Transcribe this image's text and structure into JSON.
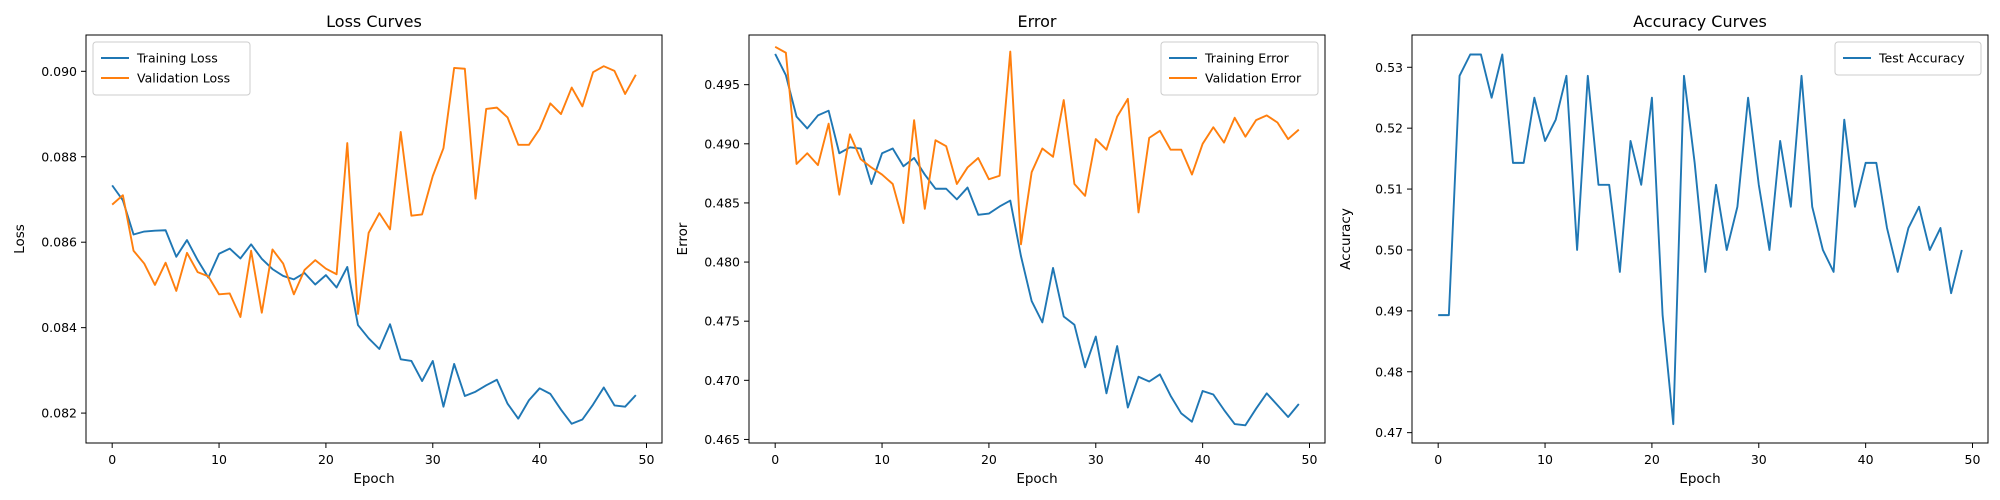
{
  "colors": {
    "blue": "#1f77b4",
    "orange": "#ff7f0e"
  },
  "chart_data": [
    {
      "type": "line",
      "title": "Loss Curves",
      "xlabel": "Epoch",
      "ylabel": "Loss",
      "xlim": [
        -2.45,
        51.45
      ],
      "ylim": [
        0.0813,
        0.09085
      ],
      "xticks": [
        0,
        10,
        20,
        30,
        40,
        50
      ],
      "yticks": [
        0.082,
        0.084,
        0.086,
        0.088,
        0.09
      ],
      "ytick_labels": [
        "0.082",
        "0.084",
        "0.086",
        "0.088",
        "0.090"
      ],
      "legend_loc": "upper left",
      "x": [
        0,
        1,
        2,
        3,
        4,
        5,
        6,
        7,
        8,
        9,
        10,
        11,
        12,
        13,
        14,
        15,
        16,
        17,
        18,
        19,
        20,
        21,
        22,
        23,
        24,
        25,
        26,
        27,
        28,
        29,
        30,
        31,
        32,
        33,
        34,
        35,
        36,
        37,
        38,
        39,
        40,
        41,
        42,
        43,
        44,
        45,
        46,
        47,
        48,
        49
      ],
      "series": [
        {
          "name": "Training Loss",
          "color": "#1f77b4",
          "values": [
            0.08733,
            0.08698,
            0.08618,
            0.08625,
            0.08627,
            0.08628,
            0.08566,
            0.08605,
            0.08558,
            0.08517,
            0.08573,
            0.08585,
            0.08562,
            0.08595,
            0.08561,
            0.08537,
            0.08521,
            0.08513,
            0.08528,
            0.08501,
            0.08523,
            0.08494,
            0.08542,
            0.08406,
            0.08375,
            0.0835,
            0.08408,
            0.08326,
            0.08322,
            0.08275,
            0.08322,
            0.08215,
            0.08315,
            0.0824,
            0.0825,
            0.08265,
            0.08278,
            0.08222,
            0.08187,
            0.0823,
            0.08258,
            0.08245,
            0.08208,
            0.08175,
            0.08185,
            0.0822,
            0.0826,
            0.08218,
            0.08215,
            0.08242
          ]
        },
        {
          "name": "Validation Loss",
          "color": "#ff7f0e",
          "values": [
            0.08688,
            0.0871,
            0.0858,
            0.0855,
            0.085,
            0.08552,
            0.08486,
            0.08575,
            0.0853,
            0.0852,
            0.08478,
            0.0848,
            0.08425,
            0.0858,
            0.08435,
            0.08583,
            0.0855,
            0.08478,
            0.08535,
            0.08558,
            0.08538,
            0.08525,
            0.08832,
            0.08432,
            0.08622,
            0.08668,
            0.0863,
            0.08858,
            0.08662,
            0.08665,
            0.08755,
            0.0882,
            0.09008,
            0.09006,
            0.08702,
            0.08912,
            0.08915,
            0.08892,
            0.08828,
            0.08828,
            0.08865,
            0.08925,
            0.089,
            0.08962,
            0.08918,
            0.08998,
            0.09012,
            0.09001,
            0.08947,
            0.08992
          ]
        }
      ]
    },
    {
      "type": "line",
      "title": "Error",
      "xlabel": "Epoch",
      "ylabel": "Error",
      "xlim": [
        -2.45,
        51.45
      ],
      "ylim": [
        0.4647,
        0.4992
      ],
      "xticks": [
        0,
        10,
        20,
        30,
        40,
        50
      ],
      "yticks": [
        0.465,
        0.47,
        0.475,
        0.48,
        0.485,
        0.49,
        0.495
      ],
      "ytick_labels": [
        "0.465",
        "0.470",
        "0.475",
        "0.480",
        "0.485",
        "0.490",
        "0.495"
      ],
      "legend_loc": "upper right",
      "x": [
        0,
        1,
        2,
        3,
        4,
        5,
        6,
        7,
        8,
        9,
        10,
        11,
        12,
        13,
        14,
        15,
        16,
        17,
        18,
        19,
        20,
        21,
        22,
        23,
        24,
        25,
        26,
        27,
        28,
        29,
        30,
        31,
        32,
        33,
        34,
        35,
        36,
        37,
        38,
        39,
        40,
        41,
        42,
        43,
        44,
        45,
        46,
        47,
        48,
        49
      ],
      "series": [
        {
          "name": "Training Error",
          "color": "#1f77b4",
          "values": [
            0.4976,
            0.4958,
            0.4923,
            0.4913,
            0.4924,
            0.4928,
            0.4892,
            0.4897,
            0.4896,
            0.4866,
            0.4892,
            0.4896,
            0.4881,
            0.4888,
            0.4874,
            0.4862,
            0.4862,
            0.4853,
            0.4863,
            0.484,
            0.4841,
            0.4847,
            0.4852,
            0.4805,
            0.4767,
            0.4749,
            0.4795,
            0.4754,
            0.4747,
            0.4711,
            0.4737,
            0.4689,
            0.4729,
            0.4677,
            0.4703,
            0.4699,
            0.4705,
            0.4687,
            0.4672,
            0.4665,
            0.4691,
            0.4688,
            0.4675,
            0.4663,
            0.4662,
            0.4676,
            0.4689,
            0.4679,
            0.4669,
            0.468
          ]
        },
        {
          "name": "Validation Error",
          "color": "#ff7f0e",
          "values": [
            0.4982,
            0.4977,
            0.4883,
            0.4892,
            0.4882,
            0.4917,
            0.4857,
            0.4908,
            0.4887,
            0.488,
            0.4874,
            0.4866,
            0.4833,
            0.492,
            0.4845,
            0.4903,
            0.4898,
            0.4866,
            0.488,
            0.4888,
            0.487,
            0.4873,
            0.4978,
            0.4815,
            0.4876,
            0.4896,
            0.4889,
            0.4937,
            0.4866,
            0.4856,
            0.4904,
            0.4895,
            0.4923,
            0.4938,
            0.4842,
            0.4905,
            0.4911,
            0.4895,
            0.4895,
            0.4874,
            0.49,
            0.4914,
            0.4901,
            0.4922,
            0.4906,
            0.492,
            0.4924,
            0.4918,
            0.4904,
            0.4912
          ]
        }
      ]
    },
    {
      "type": "line",
      "title": "Accuracy Curves",
      "xlabel": "Epoch",
      "ylabel": "Accuracy",
      "xlim": [
        -2.45,
        51.45
      ],
      "ylim": [
        0.4683,
        0.5353
      ],
      "xticks": [
        0,
        10,
        20,
        30,
        40,
        50
      ],
      "yticks": [
        0.47,
        0.48,
        0.49,
        0.5,
        0.51,
        0.52,
        0.53
      ],
      "ytick_labels": [
        "0.47",
        "0.48",
        "0.49",
        "0.50",
        "0.51",
        "0.52",
        "0.53"
      ],
      "legend_loc": "upper right",
      "x": [
        0,
        1,
        2,
        3,
        4,
        5,
        6,
        7,
        8,
        9,
        10,
        11,
        12,
        13,
        14,
        15,
        16,
        17,
        18,
        19,
        20,
        21,
        22,
        23,
        24,
        25,
        26,
        27,
        28,
        29,
        30,
        31,
        32,
        33,
        34,
        35,
        36,
        37,
        38,
        39,
        40,
        41,
        42,
        43,
        44,
        45,
        46,
        47,
        48,
        49
      ],
      "series": [
        {
          "name": "Test Accuracy",
          "color": "#1f77b4",
          "values": [
            0.4893,
            0.4893,
            0.5286,
            0.5321,
            0.5321,
            0.525,
            0.5321,
            0.5143,
            0.5143,
            0.525,
            0.5179,
            0.5214,
            0.5286,
            0.5,
            0.5286,
            0.5107,
            0.5107,
            0.4964,
            0.5179,
            0.5107,
            0.525,
            0.4893,
            0.4714,
            0.5286,
            0.5143,
            0.4964,
            0.5107,
            0.5,
            0.5071,
            0.525,
            0.5107,
            0.5,
            0.5179,
            0.5071,
            0.5286,
            0.5071,
            0.5,
            0.4964,
            0.5214,
            0.5071,
            0.5143,
            0.5143,
            0.5036,
            0.4964,
            0.5036,
            0.5071,
            0.5,
            0.5036,
            0.4929,
            0.5
          ]
        }
      ]
    }
  ]
}
